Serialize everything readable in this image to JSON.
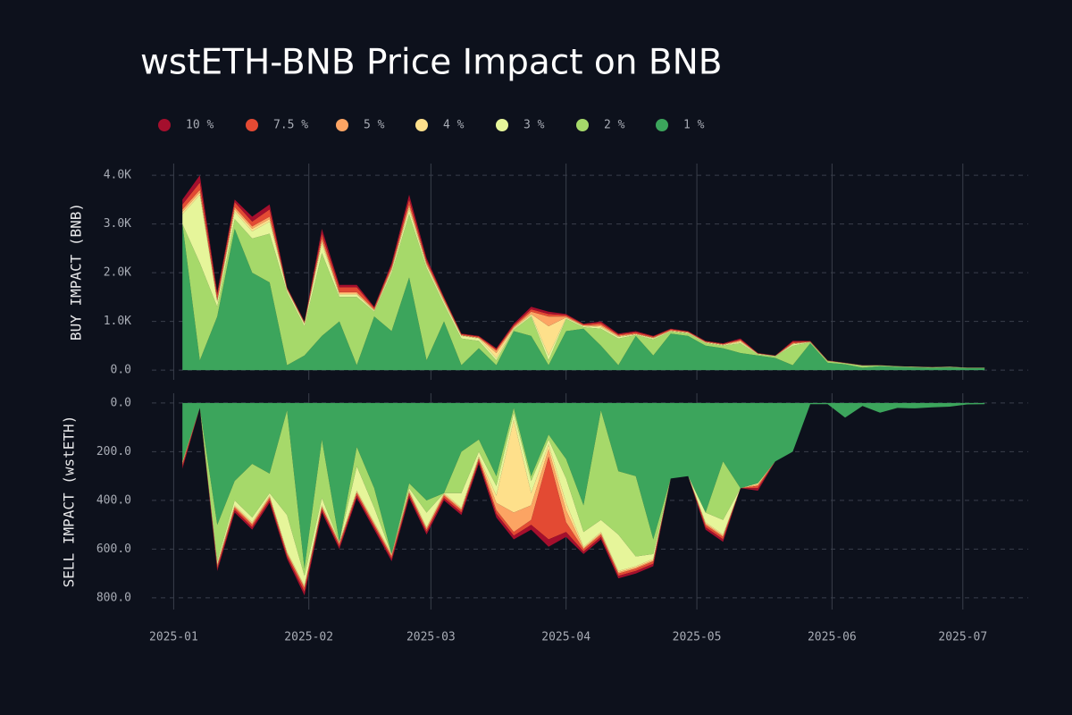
{
  "chart_data": [
    {
      "type": "area",
      "title": "wstETH-BNB Price Impact on BNB",
      "ylabel": "BUY IMPACT (BNB)",
      "x": [
        2,
        6,
        10,
        14,
        18,
        22,
        26,
        30,
        34,
        38,
        42,
        46,
        50,
        54,
        58,
        62,
        66,
        70,
        74,
        78,
        82,
        86,
        90,
        94,
        98,
        102,
        106,
        110,
        114,
        118,
        122,
        126,
        130,
        134,
        138,
        142,
        146,
        150,
        154,
        158,
        162,
        166,
        170,
        174,
        178,
        182,
        186
      ],
      "xlim": [
        -5,
        196
      ],
      "xticks": [
        {
          "value": 0,
          "label": "2025-01"
        },
        {
          "value": 31,
          "label": "2025-02"
        },
        {
          "value": 59,
          "label": "2025-03"
        },
        {
          "value": 90,
          "label": "2025-04"
        },
        {
          "value": 120,
          "label": "2025-05"
        },
        {
          "value": 151,
          "label": "2025-06"
        },
        {
          "value": 181,
          "label": "2025-07"
        }
      ],
      "ylim": [
        -200,
        4240
      ],
      "yticks": [
        {
          "value": 0,
          "label": "0.0"
        },
        {
          "value": 1000,
          "label": "1.0K"
        },
        {
          "value": 2000,
          "label": "2.0K"
        },
        {
          "value": 3000,
          "label": "3.0K"
        },
        {
          "value": 4000,
          "label": "4.0K"
        }
      ],
      "grid": true,
      "series": [
        {
          "name": "10 %",
          "color": "#a50f2d",
          "values": [
            100,
            150,
            50,
            50,
            100,
            100,
            10,
            10,
            100,
            50,
            50,
            20,
            50,
            100,
            50,
            20,
            10,
            10,
            20,
            30,
            50,
            50,
            20,
            10,
            30,
            20,
            20,
            10,
            10,
            10,
            10,
            10,
            20,
            5,
            2,
            20,
            5,
            3,
            1,
            1,
            0,
            0,
            0,
            0,
            0,
            0,
            0
          ]
        },
        {
          "name": "7.5 %",
          "color": "#e34a33",
          "values": [
            100,
            150,
            100,
            100,
            100,
            150,
            20,
            20,
            100,
            100,
            100,
            30,
            50,
            100,
            50,
            30,
            20,
            20,
            30,
            30,
            50,
            50,
            30,
            20,
            40,
            20,
            30,
            20,
            20,
            10,
            10,
            10,
            20,
            5,
            3,
            30,
            10,
            4,
            2,
            2,
            1,
            1,
            1,
            1,
            1,
            1,
            1
          ]
        },
        {
          "name": "5 %",
          "color": "#fca463",
          "values": [
            50,
            50,
            30,
            50,
            50,
            50,
            10,
            10,
            50,
            30,
            30,
            20,
            30,
            50,
            30,
            30,
            10,
            10,
            50,
            20,
            50,
            200,
            20,
            10,
            30,
            20,
            10,
            10,
            10,
            10,
            10,
            10,
            20,
            5,
            5,
            10,
            5,
            3,
            2,
            2,
            1,
            1,
            1,
            1,
            1,
            1,
            1
          ]
        },
        {
          "name": "4 %",
          "color": "#fee08b",
          "values": [
            50,
            50,
            20,
            50,
            50,
            50,
            10,
            10,
            50,
            20,
            20,
            10,
            20,
            50,
            20,
            20,
            10,
            10,
            100,
            20,
            20,
            600,
            10,
            10,
            20,
            10,
            10,
            10,
            10,
            10,
            10,
            10,
            20,
            5,
            5,
            10,
            5,
            5,
            2,
            2,
            1,
            1,
            1,
            1,
            1,
            1,
            1
          ]
        },
        {
          "name": "3 %",
          "color": "#e6f59a",
          "values": [
            200,
            1400,
            100,
            150,
            150,
            250,
            50,
            50,
            200,
            50,
            50,
            20,
            50,
            100,
            50,
            50,
            50,
            50,
            50,
            20,
            30,
            100,
            20,
            20,
            30,
            30,
            10,
            20,
            10,
            10,
            10,
            10,
            20,
            10,
            5,
            30,
            5,
            5,
            3,
            3,
            2,
            2,
            2,
            2,
            2,
            1,
            1
          ]
        },
        {
          "name": "2 %",
          "color": "#a6d96a",
          "values": [
            0,
            2000,
            200,
            200,
            700,
            1000,
            1500,
            600,
            1700,
            500,
            1400,
            100,
            1200,
            1300,
            1900,
            350,
            550,
            150,
            100,
            30,
            400,
            100,
            250,
            30,
            350,
            550,
            20,
            330,
            40,
            50,
            50,
            50,
            200,
            20,
            30,
            400,
            20,
            30,
            20,
            40,
            15,
            10,
            10,
            10,
            10,
            6,
            6
          ]
        },
        {
          "name": "1 %",
          "color": "#3ca55c",
          "values": [
            3000,
            200,
            1100,
            2900,
            2000,
            1800,
            100,
            300,
            700,
            1000,
            100,
            1100,
            800,
            1900,
            200,
            1000,
            100,
            450,
            100,
            800,
            700,
            100,
            800,
            850,
            500,
            100,
            700,
            300,
            750,
            700,
            500,
            450,
            350,
            300,
            250,
            100,
            550,
            150,
            120,
            50,
            80,
            65,
            55,
            45,
            55,
            40,
            40
          ]
        }
      ]
    },
    {
      "type": "area",
      "ylabel": "SELL IMPACT (wstETH)",
      "ylim": [
        848,
        -40
      ],
      "yticks": [
        {
          "value": 0,
          "label": "0.0"
        },
        {
          "value": 200,
          "label": "200.0"
        },
        {
          "value": 400,
          "label": "400.0"
        },
        {
          "value": 600,
          "label": "600.0"
        },
        {
          "value": 800,
          "label": "800.0"
        }
      ],
      "grid": true,
      "series": [
        {
          "values": [
            10,
            0,
            10,
            10,
            10,
            10,
            10,
            15,
            10,
            10,
            10,
            10,
            10,
            10,
            10,
            10,
            10,
            10,
            15,
            15,
            20,
            30,
            20,
            10,
            10,
            10,
            10,
            10,
            0,
            0,
            10,
            10,
            0,
            10,
            0,
            0,
            0,
            0,
            0,
            0,
            0,
            0,
            0,
            0,
            0,
            0,
            0
          ]
        },
        {
          "values": [
            10,
            0,
            10,
            10,
            10,
            10,
            10,
            15,
            10,
            10,
            10,
            10,
            10,
            10,
            10,
            10,
            10,
            10,
            15,
            15,
            20,
            340,
            40,
            10,
            10,
            10,
            10,
            10,
            0,
            0,
            10,
            10,
            0,
            10,
            0,
            0,
            0,
            0,
            0,
            0,
            0,
            0,
            0,
            0,
            0,
            0,
            0
          ]
        },
        {
          "values": [
            5,
            0,
            5,
            5,
            5,
            5,
            5,
            5,
            5,
            5,
            5,
            5,
            5,
            5,
            5,
            5,
            5,
            5,
            30,
            80,
            60,
            30,
            50,
            5,
            5,
            5,
            5,
            5,
            0,
            0,
            5,
            5,
            0,
            5,
            0,
            0,
            0,
            0,
            0,
            0,
            0,
            0,
            0,
            0,
            0,
            0,
            0
          ]
        },
        {
          "values": [
            5,
            0,
            5,
            5,
            5,
            5,
            5,
            5,
            5,
            5,
            5,
            5,
            5,
            5,
            5,
            5,
            5,
            5,
            30,
            380,
            50,
            20,
            30,
            5,
            5,
            5,
            5,
            5,
            0,
            0,
            5,
            5,
            0,
            5,
            0,
            0,
            0,
            0,
            0,
            0,
            0,
            0,
            0,
            0,
            0,
            0,
            0
          ]
        },
        {
          "values": [
            0,
            0,
            10,
            20,
            20,
            10,
            150,
            40,
            30,
            0,
            100,
            60,
            0,
            10,
            60,
            0,
            60,
            20,
            40,
            30,
            50,
            20,
            100,
            60,
            50,
            150,
            40,
            20,
            0,
            0,
            40,
            60,
            0,
            0,
            0,
            0,
            0,
            0,
            0,
            0,
            0,
            0,
            0,
            0,
            0,
            0,
            0
          ]
        },
        {
          "values": [
            0,
            0,
            150,
            80,
            220,
            80,
            430,
            30,
            240,
            0,
            80,
            80,
            0,
            20,
            50,
            0,
            170,
            50,
            40,
            20,
            20,
            20,
            80,
            110,
            450,
            260,
            330,
            60,
            0,
            0,
            0,
            240,
            0,
            0,
            0,
            0,
            0,
            0,
            0,
            0,
            0,
            0,
            0,
            0,
            0,
            0,
            0
          ]
        },
        {
          "values": [
            240,
            20,
            500,
            320,
            250,
            290,
            30,
            680,
            150,
            570,
            180,
            350,
            620,
            330,
            400,
            370,
            200,
            150,
            300,
            20,
            300,
            130,
            230,
            420,
            30,
            280,
            300,
            560,
            310,
            300,
            450,
            240,
            350,
            330,
            240,
            200,
            5,
            5,
            60,
            12,
            40,
            20,
            22,
            18,
            15,
            6,
            5
          ]
        }
      ]
    }
  ]
}
